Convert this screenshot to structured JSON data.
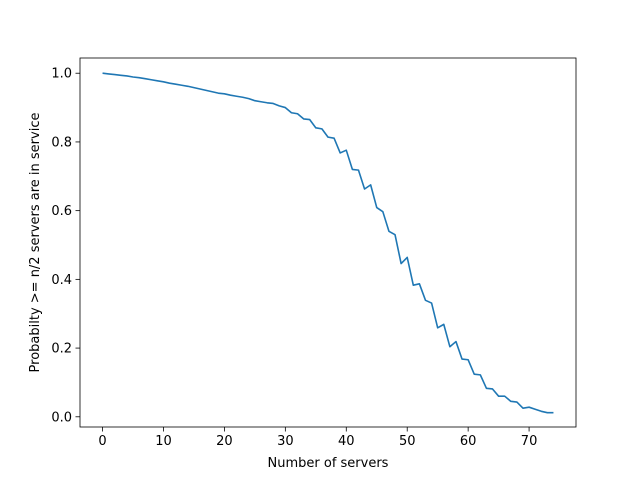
{
  "chart_data": {
    "type": "line",
    "title": "",
    "xlabel": "Number of servers",
    "ylabel": "Probabilty >= n/2 servers are in service",
    "xlim": [
      -3.7,
      77.7
    ],
    "ylim": [
      -0.0297,
      1.0443
    ],
    "xticks": [
      0,
      10,
      20,
      30,
      40,
      50,
      60,
      70
    ],
    "xtick_labels": [
      "0",
      "10",
      "20",
      "30",
      "40",
      "50",
      "60",
      "70"
    ],
    "yticks": [
      0.0,
      0.2,
      0.4,
      0.6,
      0.8,
      1.0
    ],
    "ytick_labels": [
      "0.0",
      "0.2",
      "0.4",
      "0.6",
      "0.8",
      "1.0"
    ],
    "grid": false,
    "legend": "none",
    "series": [
      {
        "color": "#1f77b4",
        "x": [
          0,
          1,
          2,
          3,
          4,
          5,
          6,
          7,
          8,
          9,
          10,
          11,
          12,
          13,
          14,
          15,
          16,
          17,
          18,
          19,
          20,
          21,
          22,
          23,
          24,
          25,
          26,
          27,
          28,
          29,
          30,
          31,
          32,
          33,
          34,
          35,
          36,
          37,
          38,
          39,
          40,
          41,
          42,
          43,
          44,
          45,
          46,
          47,
          48,
          49,
          50,
          51,
          52,
          53,
          54,
          55,
          56,
          57,
          58,
          59,
          60,
          61,
          62,
          63,
          64,
          65,
          66,
          67,
          68,
          69,
          70,
          71,
          72,
          73,
          74
        ],
        "y": [
          1.0,
          0.998,
          0.996,
          0.994,
          0.992,
          0.989,
          0.987,
          0.984,
          0.981,
          0.978,
          0.975,
          0.971,
          0.968,
          0.965,
          0.962,
          0.958,
          0.954,
          0.95,
          0.946,
          0.942,
          0.94,
          0.936,
          0.933,
          0.93,
          0.926,
          0.92,
          0.917,
          0.914,
          0.912,
          0.905,
          0.9,
          0.885,
          0.882,
          0.867,
          0.865,
          0.841,
          0.838,
          0.814,
          0.811,
          0.768,
          0.776,
          0.72,
          0.718,
          0.663,
          0.675,
          0.609,
          0.597,
          0.54,
          0.53,
          0.446,
          0.464,
          0.383,
          0.387,
          0.339,
          0.331,
          0.259,
          0.269,
          0.204,
          0.219,
          0.168,
          0.166,
          0.124,
          0.122,
          0.083,
          0.081,
          0.06,
          0.06,
          0.045,
          0.043,
          0.025,
          0.028,
          0.022,
          0.016,
          0.012,
          0.012
        ]
      }
    ]
  }
}
